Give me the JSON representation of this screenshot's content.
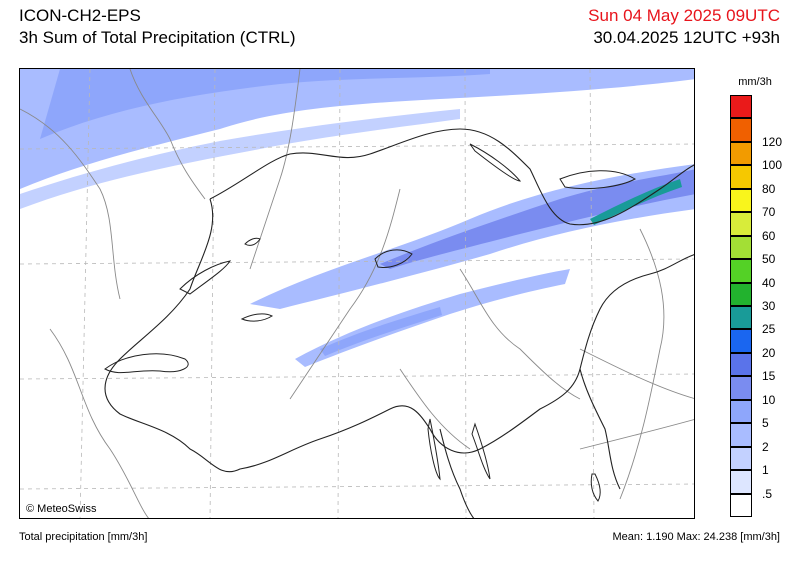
{
  "header": {
    "model": "ICON-CH2-EPS",
    "product": "3h Sum of Total Precipitation (CTRL)",
    "valid_time": "Sun 04 May 2025 09UTC",
    "run_info": "30.04.2025 12UTC +93h"
  },
  "map": {
    "copyright": "© MeteoSwiss"
  },
  "legend": {
    "unit": "mm/3h",
    "levels": [
      {
        "label": ".5",
        "color": "#dde6ff"
      },
      {
        "label": "1",
        "color": "#c3d1ff"
      },
      {
        "label": "2",
        "color": "#a9bcff"
      },
      {
        "label": "5",
        "color": "#8ea6fb"
      },
      {
        "label": "10",
        "color": "#7a8cf0"
      },
      {
        "label": "15",
        "color": "#5a73ea"
      },
      {
        "label": "20",
        "color": "#1a66f0"
      },
      {
        "label": "25",
        "color": "#199b98"
      },
      {
        "label": "30",
        "color": "#22b22e"
      },
      {
        "label": "40",
        "color": "#54d126"
      },
      {
        "label": "50",
        "color": "#a3df35"
      },
      {
        "label": "60",
        "color": "#d8ec3a"
      },
      {
        "label": "70",
        "color": "#f9f51c"
      },
      {
        "label": "80",
        "color": "#f6c800"
      },
      {
        "label": "100",
        "color": "#f29b00"
      },
      {
        "label": "120",
        "color": "#f06000"
      },
      {
        "label": "",
        "color": "#ea1a1a"
      }
    ]
  },
  "footer": {
    "variable": "Total precipitation [mm/3h]",
    "stats": "Mean:   1.190 Max:  24.238 [mm/3h]"
  }
}
